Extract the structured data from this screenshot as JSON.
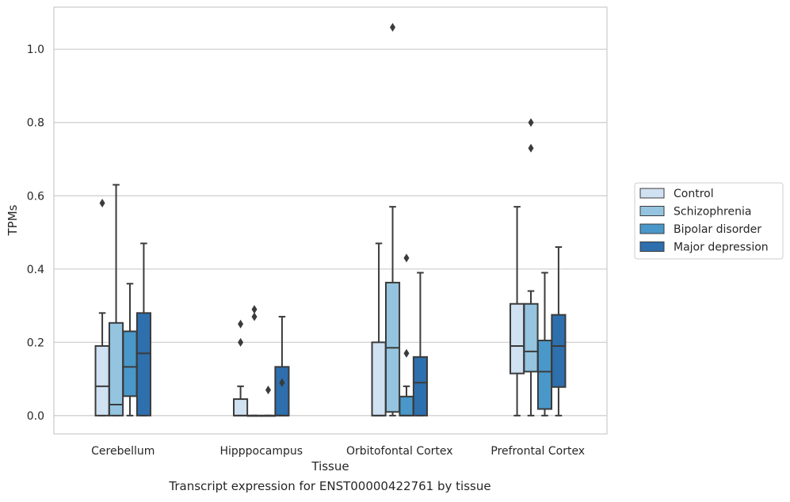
{
  "chart_data": {
    "type": "box",
    "xlabel": "Tissue",
    "ylabel": "TPMs",
    "ylim": [
      -0.05,
      1.115
    ],
    "yticks": [
      0.0,
      0.2,
      0.4,
      0.6,
      0.8,
      1.0
    ],
    "ytick_labels": [
      "0.0",
      "0.2",
      "0.4",
      "0.6",
      "0.8",
      "1.0"
    ],
    "grid": "horizontal",
    "legend_position": "right",
    "categories": [
      "Cerebellum",
      "Hipppocampus",
      "Orbitofontal Cortex",
      "Prefrontal Cortex"
    ],
    "series": [
      {
        "name": "Control",
        "color": "#d0e1f2",
        "boxes": [
          {
            "whislo": 0.0,
            "q1": 0.0,
            "med": 0.08,
            "q3": 0.19,
            "whishi": 0.28,
            "fliers": [
              0.58
            ]
          },
          {
            "whislo": 0.0,
            "q1": 0.0,
            "med": 0.0,
            "q3": 0.045,
            "whishi": 0.08,
            "fliers": [
              0.2,
              0.25
            ]
          },
          {
            "whislo": 0.0,
            "q1": 0.0,
            "med": 0.0,
            "q3": 0.2,
            "whishi": 0.47,
            "fliers": []
          },
          {
            "whislo": 0.0,
            "q1": 0.115,
            "med": 0.19,
            "q3": 0.305,
            "whishi": 0.57,
            "fliers": []
          }
        ]
      },
      {
        "name": "Schizophrenia",
        "color": "#94c4df",
        "boxes": [
          {
            "whislo": 0.0,
            "q1": 0.0,
            "med": 0.03,
            "q3": 0.253,
            "whishi": 0.63,
            "fliers": []
          },
          {
            "whislo": 0.0,
            "q1": 0.0,
            "med": 0.0,
            "q3": 0.0,
            "whishi": 0.0,
            "fliers": [
              0.27,
              0.29
            ]
          },
          {
            "whislo": 0.0,
            "q1": 0.01,
            "med": 0.185,
            "q3": 0.363,
            "whishi": 0.57,
            "fliers": [
              1.06
            ]
          },
          {
            "whislo": 0.0,
            "q1": 0.12,
            "med": 0.175,
            "q3": 0.305,
            "whishi": 0.34,
            "fliers": [
              0.73,
              0.8
            ]
          }
        ]
      },
      {
        "name": "Bipolar disorder",
        "color": "#4a98c9",
        "boxes": [
          {
            "whislo": 0.0,
            "q1": 0.053,
            "med": 0.133,
            "q3": 0.23,
            "whishi": 0.36,
            "fliers": []
          },
          {
            "whislo": 0.0,
            "q1": 0.0,
            "med": 0.0,
            "q3": 0.0,
            "whishi": 0.0,
            "fliers": [
              0.07
            ]
          },
          {
            "whislo": 0.0,
            "q1": 0.0,
            "med": 0.0,
            "q3": 0.052,
            "whishi": 0.08,
            "fliers": [
              0.17,
              0.43
            ]
          },
          {
            "whislo": 0.0,
            "q1": 0.018,
            "med": 0.12,
            "q3": 0.205,
            "whishi": 0.39,
            "fliers": []
          }
        ]
      },
      {
        "name": "Major depression",
        "color": "#2e6fae",
        "boxes": [
          {
            "whislo": 0.0,
            "q1": 0.0,
            "med": 0.17,
            "q3": 0.28,
            "whishi": 0.47,
            "fliers": []
          },
          {
            "whislo": 0.0,
            "q1": 0.0,
            "med": 0.0,
            "q3": 0.133,
            "whishi": 0.27,
            "fliers": [
              0.09
            ]
          },
          {
            "whislo": 0.0,
            "q1": 0.0,
            "med": 0.09,
            "q3": 0.16,
            "whishi": 0.39,
            "fliers": []
          },
          {
            "whislo": 0.0,
            "q1": 0.078,
            "med": 0.19,
            "q3": 0.275,
            "whishi": 0.46,
            "fliers": []
          }
        ]
      }
    ],
    "caption": "Transcript expression for ENST00000422761 by tissue"
  }
}
